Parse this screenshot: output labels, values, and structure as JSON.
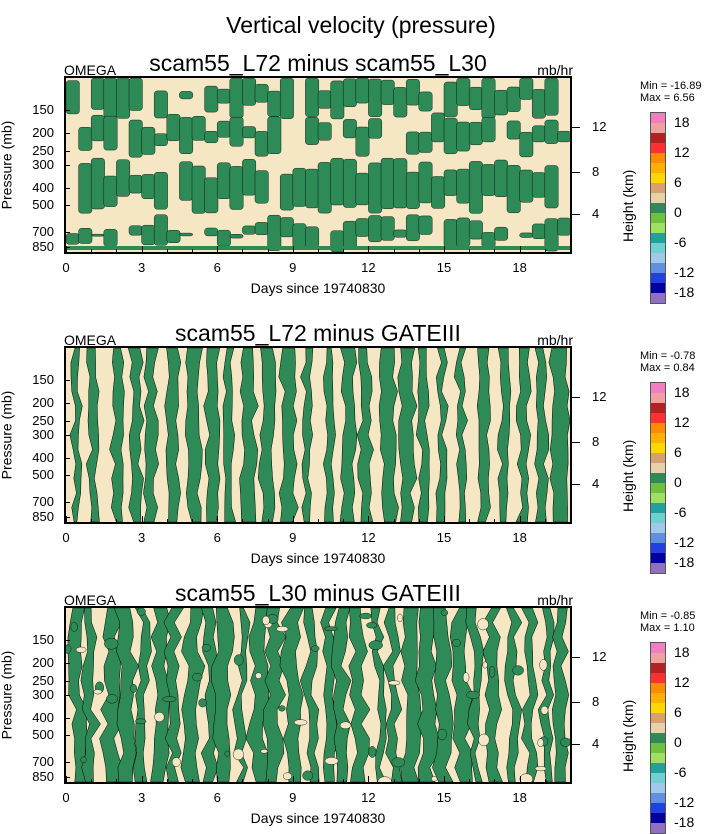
{
  "figure": {
    "title": "Vertical velocity (pressure)"
  },
  "colors": {
    "positive_fill": "#f5e6c4",
    "negative_fill": "#2e8b57",
    "colorbar": [
      "#f07fbf",
      "#f0a0a0",
      "#b22222",
      "#ff3030",
      "#ff8c00",
      "#ffb000",
      "#ffd700",
      "#d8a070",
      "#e8d0a8",
      "#2e8b57",
      "#70c040",
      "#a0e060",
      "#20a0a0",
      "#70d0d0",
      "#a0c8e8",
      "#6090e0",
      "#2040e0",
      "#0000a0",
      "#9070c0"
    ]
  },
  "chart_data": [
    {
      "type": "heatmap",
      "title": "scam55_L72 minus scam55_L30",
      "variable": "OMEGA",
      "units": "mb/hr",
      "xlabel": "Days since 19740830",
      "ylabel": "Pressure (mb)",
      "ylabel_right": "Height (km)",
      "xlim": [
        0,
        20
      ],
      "xticks": [
        0,
        3,
        6,
        9,
        12,
        15,
        18
      ],
      "yticks_left": [
        150,
        200,
        250,
        300,
        400,
        500,
        700,
        850
      ],
      "yticks_right": [
        4,
        8,
        12
      ],
      "min": "-16.89",
      "max": "6.56",
      "colorbar_labels": [
        "18",
        "12",
        "6",
        "0",
        "-6",
        "-12",
        "-18"
      ],
      "pattern": "horizontal"
    },
    {
      "type": "heatmap",
      "title": "scam55_L72 minus GATEIII",
      "variable": "OMEGA",
      "units": "mb/hr",
      "xlabel": "Days since 19740830",
      "ylabel": "Pressure (mb)",
      "ylabel_right": "Height (km)",
      "xlim": [
        0,
        20
      ],
      "xticks": [
        0,
        3,
        6,
        9,
        12,
        15,
        18
      ],
      "yticks_left": [
        150,
        200,
        250,
        300,
        400,
        500,
        700,
        850
      ],
      "yticks_right": [
        4,
        8,
        12
      ],
      "min": "-0.78",
      "max": "0.84",
      "colorbar_labels": [
        "18",
        "12",
        "6",
        "0",
        "-6",
        "-12",
        "-18"
      ],
      "pattern": "vertical"
    },
    {
      "type": "heatmap",
      "title": "scam55_L30 minus GATEIII",
      "variable": "OMEGA",
      "units": "mb/hr",
      "xlabel": "Days since 19740830",
      "ylabel": "Pressure (mb)",
      "ylabel_right": "Height (km)",
      "xlim": [
        0,
        20
      ],
      "xticks": [
        0,
        3,
        6,
        9,
        12,
        15,
        18
      ],
      "yticks_left": [
        150,
        200,
        250,
        300,
        400,
        500,
        700,
        850
      ],
      "yticks_right": [
        4,
        8,
        12
      ],
      "min": "-0.85",
      "max": "1.10",
      "colorbar_labels": [
        "18",
        "12",
        "6",
        "0",
        "-6",
        "-12",
        "-18"
      ],
      "pattern": "vertical-noisy"
    }
  ]
}
